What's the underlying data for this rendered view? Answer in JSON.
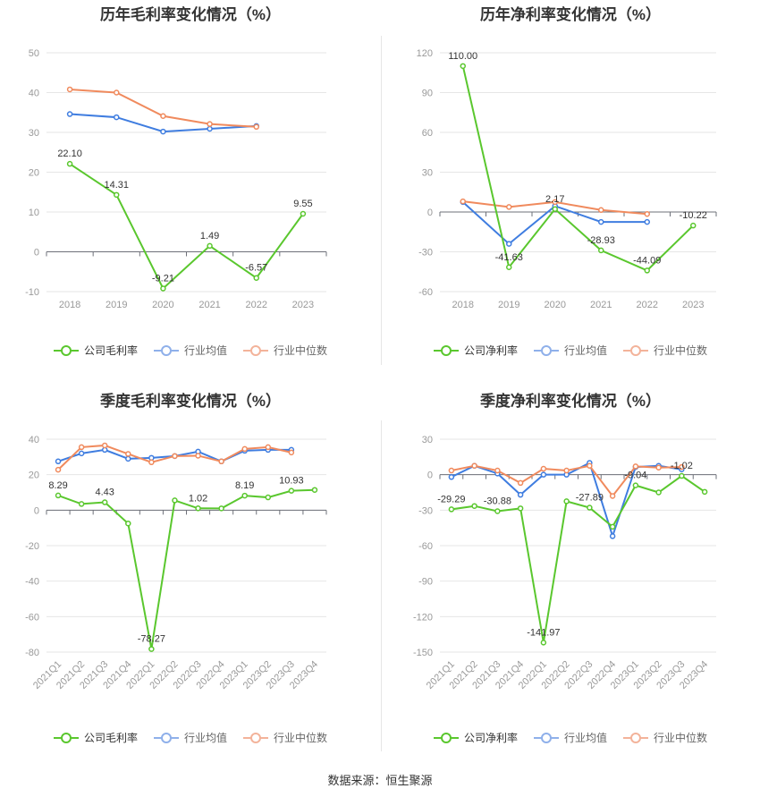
{
  "source": "数据来源：恒生聚源",
  "chart_data": [
    {
      "id": "annual-gross",
      "type": "line",
      "title": "历年毛利率变化情况（%）",
      "categories": [
        "2018",
        "2019",
        "2020",
        "2021",
        "2022",
        "2023"
      ],
      "ylim": [
        -10,
        50
      ],
      "yticks": [
        -10,
        0,
        10,
        20,
        30,
        40,
        50
      ],
      "rotate_x": false,
      "grid": true,
      "legend": "bottom",
      "series": [
        {
          "name": "公司毛利率",
          "color": "#5ac72e",
          "values": [
            22.1,
            14.31,
            -9.21,
            1.49,
            -6.57,
            9.55
          ],
          "labels": [
            "22.10",
            "14.31",
            "-9.21",
            "1.49",
            "-6.57",
            "9.55"
          ]
        },
        {
          "name": "行业均值",
          "color": "#3f7de0",
          "values": [
            34.6,
            33.8,
            30.2,
            30.9,
            31.6,
            null
          ]
        },
        {
          "name": "行业中位数",
          "color": "#f08a5d",
          "values": [
            40.8,
            40.0,
            34.1,
            32.1,
            31.4,
            null
          ]
        }
      ]
    },
    {
      "id": "annual-net",
      "type": "line",
      "title": "历年净利率变化情况（%）",
      "categories": [
        "2018",
        "2019",
        "2020",
        "2021",
        "2022",
        "2023"
      ],
      "ylim": [
        -60,
        120
      ],
      "yticks": [
        -60,
        -30,
        0,
        30,
        60,
        90,
        120
      ],
      "rotate_x": false,
      "grid": true,
      "legend": "bottom",
      "series": [
        {
          "name": "公司净利率",
          "color": "#5ac72e",
          "values": [
            110.0,
            -41.63,
            2.17,
            -28.93,
            -44.09,
            -10.22
          ],
          "labels": [
            "110.00",
            "-41.63",
            "2.17",
            "-28.93",
            "-44.09",
            "-10.22"
          ]
        },
        {
          "name": "行业均值",
          "color": "#3f7de0",
          "values": [
            7.5,
            -24.0,
            4.5,
            -7.5,
            -7.5,
            null
          ]
        },
        {
          "name": "行业中位数",
          "color": "#f08a5d",
          "values": [
            8.0,
            3.8,
            7.5,
            1.5,
            -1.5,
            null
          ]
        }
      ]
    },
    {
      "id": "quarterly-gross",
      "type": "line",
      "title": "季度毛利率变化情况（%）",
      "categories": [
        "2021Q1",
        "2021Q2",
        "2021Q3",
        "2021Q4",
        "2022Q1",
        "2022Q2",
        "2022Q3",
        "2022Q4",
        "2023Q1",
        "2023Q2",
        "2023Q3",
        "2023Q4"
      ],
      "ylim": [
        -80,
        40
      ],
      "yticks": [
        -80,
        -60,
        -40,
        -20,
        0,
        20,
        40
      ],
      "rotate_x": true,
      "grid": true,
      "legend": "bottom",
      "series": [
        {
          "name": "公司毛利率",
          "color": "#5ac72e",
          "values": [
            8.29,
            3.5,
            4.43,
            -7.5,
            -78.27,
            5.5,
            1.02,
            1.0,
            8.19,
            7.2,
            10.93,
            11.4
          ],
          "labels": [
            "8.29",
            "",
            "4.43",
            "",
            "-78.27",
            "",
            "1.02",
            "",
            "8.19",
            "",
            "10.93",
            ""
          ]
        },
        {
          "name": "行业均值",
          "color": "#3f7de0",
          "values": [
            27.5,
            32.0,
            34.0,
            29.0,
            29.5,
            30.5,
            33.0,
            27.5,
            33.5,
            34.0,
            34.0,
            null
          ]
        },
        {
          "name": "行业中位数",
          "color": "#f08a5d",
          "values": [
            22.8,
            35.5,
            36.5,
            31.7,
            27.0,
            30.5,
            30.7,
            27.5,
            34.5,
            35.5,
            32.5,
            null
          ]
        }
      ]
    },
    {
      "id": "quarterly-net",
      "type": "line",
      "title": "季度净利率变化情况（%）",
      "categories": [
        "2021Q1",
        "2021Q2",
        "2021Q3",
        "2021Q4",
        "2022Q1",
        "2022Q2",
        "2022Q3",
        "2022Q4",
        "2023Q1",
        "2023Q2",
        "2023Q3",
        "2023Q4"
      ],
      "ylim": [
        -150,
        30
      ],
      "yticks": [
        -150,
        -120,
        -90,
        -60,
        -30,
        0,
        30
      ],
      "rotate_x": true,
      "grid": true,
      "legend": "bottom",
      "series": [
        {
          "name": "公司净利率",
          "color": "#5ac72e",
          "values": [
            -29.29,
            -26.5,
            -30.88,
            -28.5,
            -141.97,
            -22.5,
            -27.89,
            -44.0,
            -9.04,
            -15.0,
            -1.02,
            -14.5
          ],
          "labels": [
            "-29.29",
            "",
            "-30.88",
            "",
            "-141.97",
            "",
            "-27.89",
            "",
            "-9.04",
            "",
            "-1.02",
            ""
          ]
        },
        {
          "name": "行业均值",
          "color": "#3f7de0",
          "values": [
            -2.0,
            7.5,
            1.0,
            -17.0,
            0.0,
            0.0,
            10.0,
            -52.0,
            6.5,
            7.5,
            4.5,
            null
          ]
        },
        {
          "name": "行业中位数",
          "color": "#f08a5d",
          "values": [
            3.5,
            7.5,
            3.5,
            -7.0,
            5.0,
            3.5,
            7.5,
            -18.0,
            7.0,
            6.0,
            6.5,
            null
          ]
        }
      ]
    }
  ]
}
